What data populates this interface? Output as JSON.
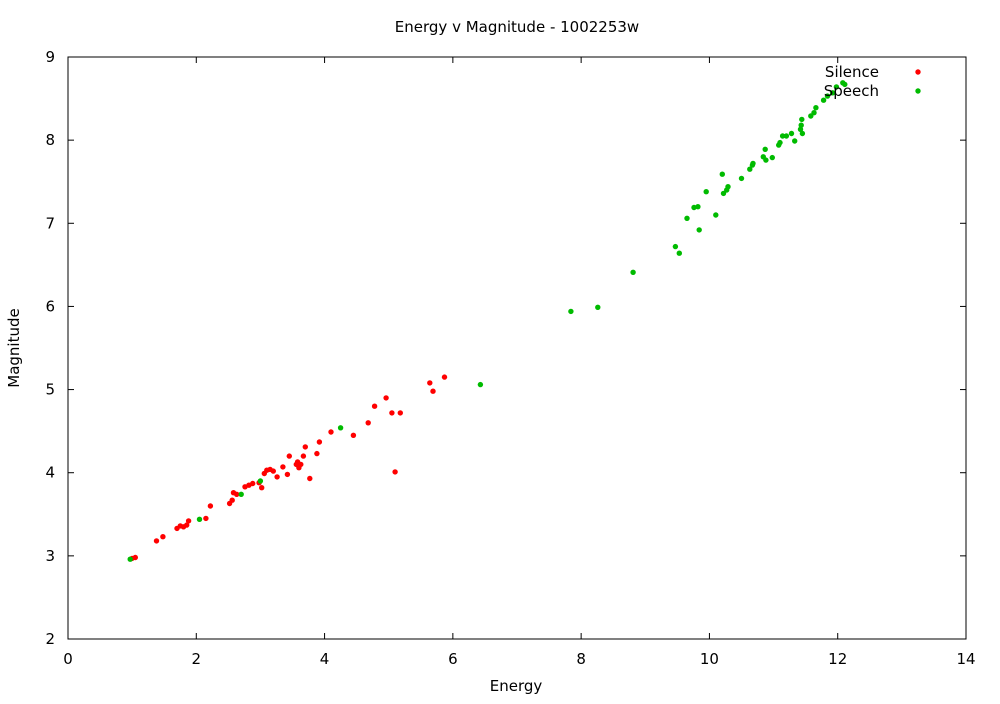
{
  "chart_data": {
    "type": "scatter",
    "title": "Energy v Magnitude - 1002253w",
    "xlabel": "Energy",
    "ylabel": "Magnitude",
    "xlim": [
      0,
      14
    ],
    "ylim": [
      2,
      9
    ],
    "xticks": [
      0,
      2,
      4,
      6,
      8,
      10,
      12,
      14
    ],
    "yticks": [
      2,
      3,
      4,
      5,
      6,
      7,
      8,
      9
    ],
    "grid": false,
    "legend_position": "top-right",
    "series": [
      {
        "name": "Silence",
        "color": "#ff0000",
        "marker": "dot",
        "points": [
          [
            1.0,
            2.97
          ],
          [
            1.05,
            2.98
          ],
          [
            1.38,
            3.18
          ],
          [
            1.48,
            3.23
          ],
          [
            1.7,
            3.33
          ],
          [
            1.75,
            3.36
          ],
          [
            1.8,
            3.35
          ],
          [
            1.85,
            3.37
          ],
          [
            1.88,
            3.42
          ],
          [
            2.15,
            3.45
          ],
          [
            2.22,
            3.6
          ],
          [
            2.52,
            3.63
          ],
          [
            2.56,
            3.67
          ],
          [
            2.58,
            3.76
          ],
          [
            2.63,
            3.74
          ],
          [
            2.76,
            3.83
          ],
          [
            2.82,
            3.85
          ],
          [
            2.88,
            3.87
          ],
          [
            2.98,
            3.88
          ],
          [
            3.02,
            3.82
          ],
          [
            3.06,
            3.99
          ],
          [
            3.1,
            4.03
          ],
          [
            3.15,
            4.04
          ],
          [
            3.2,
            4.02
          ],
          [
            3.26,
            3.95
          ],
          [
            3.35,
            4.07
          ],
          [
            3.42,
            3.98
          ],
          [
            3.45,
            4.2
          ],
          [
            3.56,
            4.1
          ],
          [
            3.58,
            4.13
          ],
          [
            3.6,
            4.06
          ],
          [
            3.63,
            4.1
          ],
          [
            3.67,
            4.2
          ],
          [
            3.7,
            4.31
          ],
          [
            3.77,
            3.93
          ],
          [
            3.88,
            4.23
          ],
          [
            3.92,
            4.37
          ],
          [
            4.1,
            4.49
          ],
          [
            4.45,
            4.45
          ],
          [
            4.68,
            4.6
          ],
          [
            4.78,
            4.8
          ],
          [
            4.96,
            4.9
          ],
          [
            5.05,
            4.72
          ],
          [
            5.1,
            4.01
          ],
          [
            5.18,
            4.72
          ],
          [
            5.64,
            5.08
          ],
          [
            5.69,
            4.98
          ],
          [
            5.87,
            5.15
          ]
        ]
      },
      {
        "name": "Speech",
        "color": "#00bb00",
        "marker": "dot",
        "points": [
          [
            0.97,
            2.96
          ],
          [
            2.05,
            3.44
          ],
          [
            2.7,
            3.74
          ],
          [
            3.0,
            3.9
          ],
          [
            4.25,
            4.54
          ],
          [
            6.43,
            5.06
          ],
          [
            7.84,
            5.94
          ],
          [
            8.26,
            5.99
          ],
          [
            8.81,
            6.41
          ],
          [
            9.47,
            6.72
          ],
          [
            9.53,
            6.64
          ],
          [
            9.65,
            7.06
          ],
          [
            9.76,
            7.19
          ],
          [
            9.82,
            7.2
          ],
          [
            9.84,
            6.92
          ],
          [
            9.95,
            7.38
          ],
          [
            10.1,
            7.1
          ],
          [
            10.2,
            7.59
          ],
          [
            10.22,
            7.36
          ],
          [
            10.27,
            7.4
          ],
          [
            10.29,
            7.44
          ],
          [
            10.5,
            7.54
          ],
          [
            10.63,
            7.65
          ],
          [
            10.67,
            7.7
          ],
          [
            10.68,
            7.72
          ],
          [
            10.84,
            7.8
          ],
          [
            10.87,
            7.89
          ],
          [
            10.88,
            7.76
          ],
          [
            10.98,
            7.79
          ],
          [
            11.08,
            7.94
          ],
          [
            11.1,
            7.97
          ],
          [
            11.14,
            8.05
          ],
          [
            11.2,
            8.05
          ],
          [
            11.28,
            8.08
          ],
          [
            11.33,
            7.99
          ],
          [
            11.42,
            8.13
          ],
          [
            11.43,
            8.18
          ],
          [
            11.45,
            8.08
          ],
          [
            11.44,
            8.25
          ],
          [
            11.58,
            8.29
          ],
          [
            11.63,
            8.33
          ],
          [
            11.66,
            8.39
          ],
          [
            11.78,
            8.48
          ],
          [
            11.84,
            8.53
          ],
          [
            11.92,
            8.57
          ],
          [
            11.98,
            8.64
          ],
          [
            12.08,
            8.69
          ],
          [
            12.11,
            8.67
          ]
        ]
      }
    ]
  }
}
